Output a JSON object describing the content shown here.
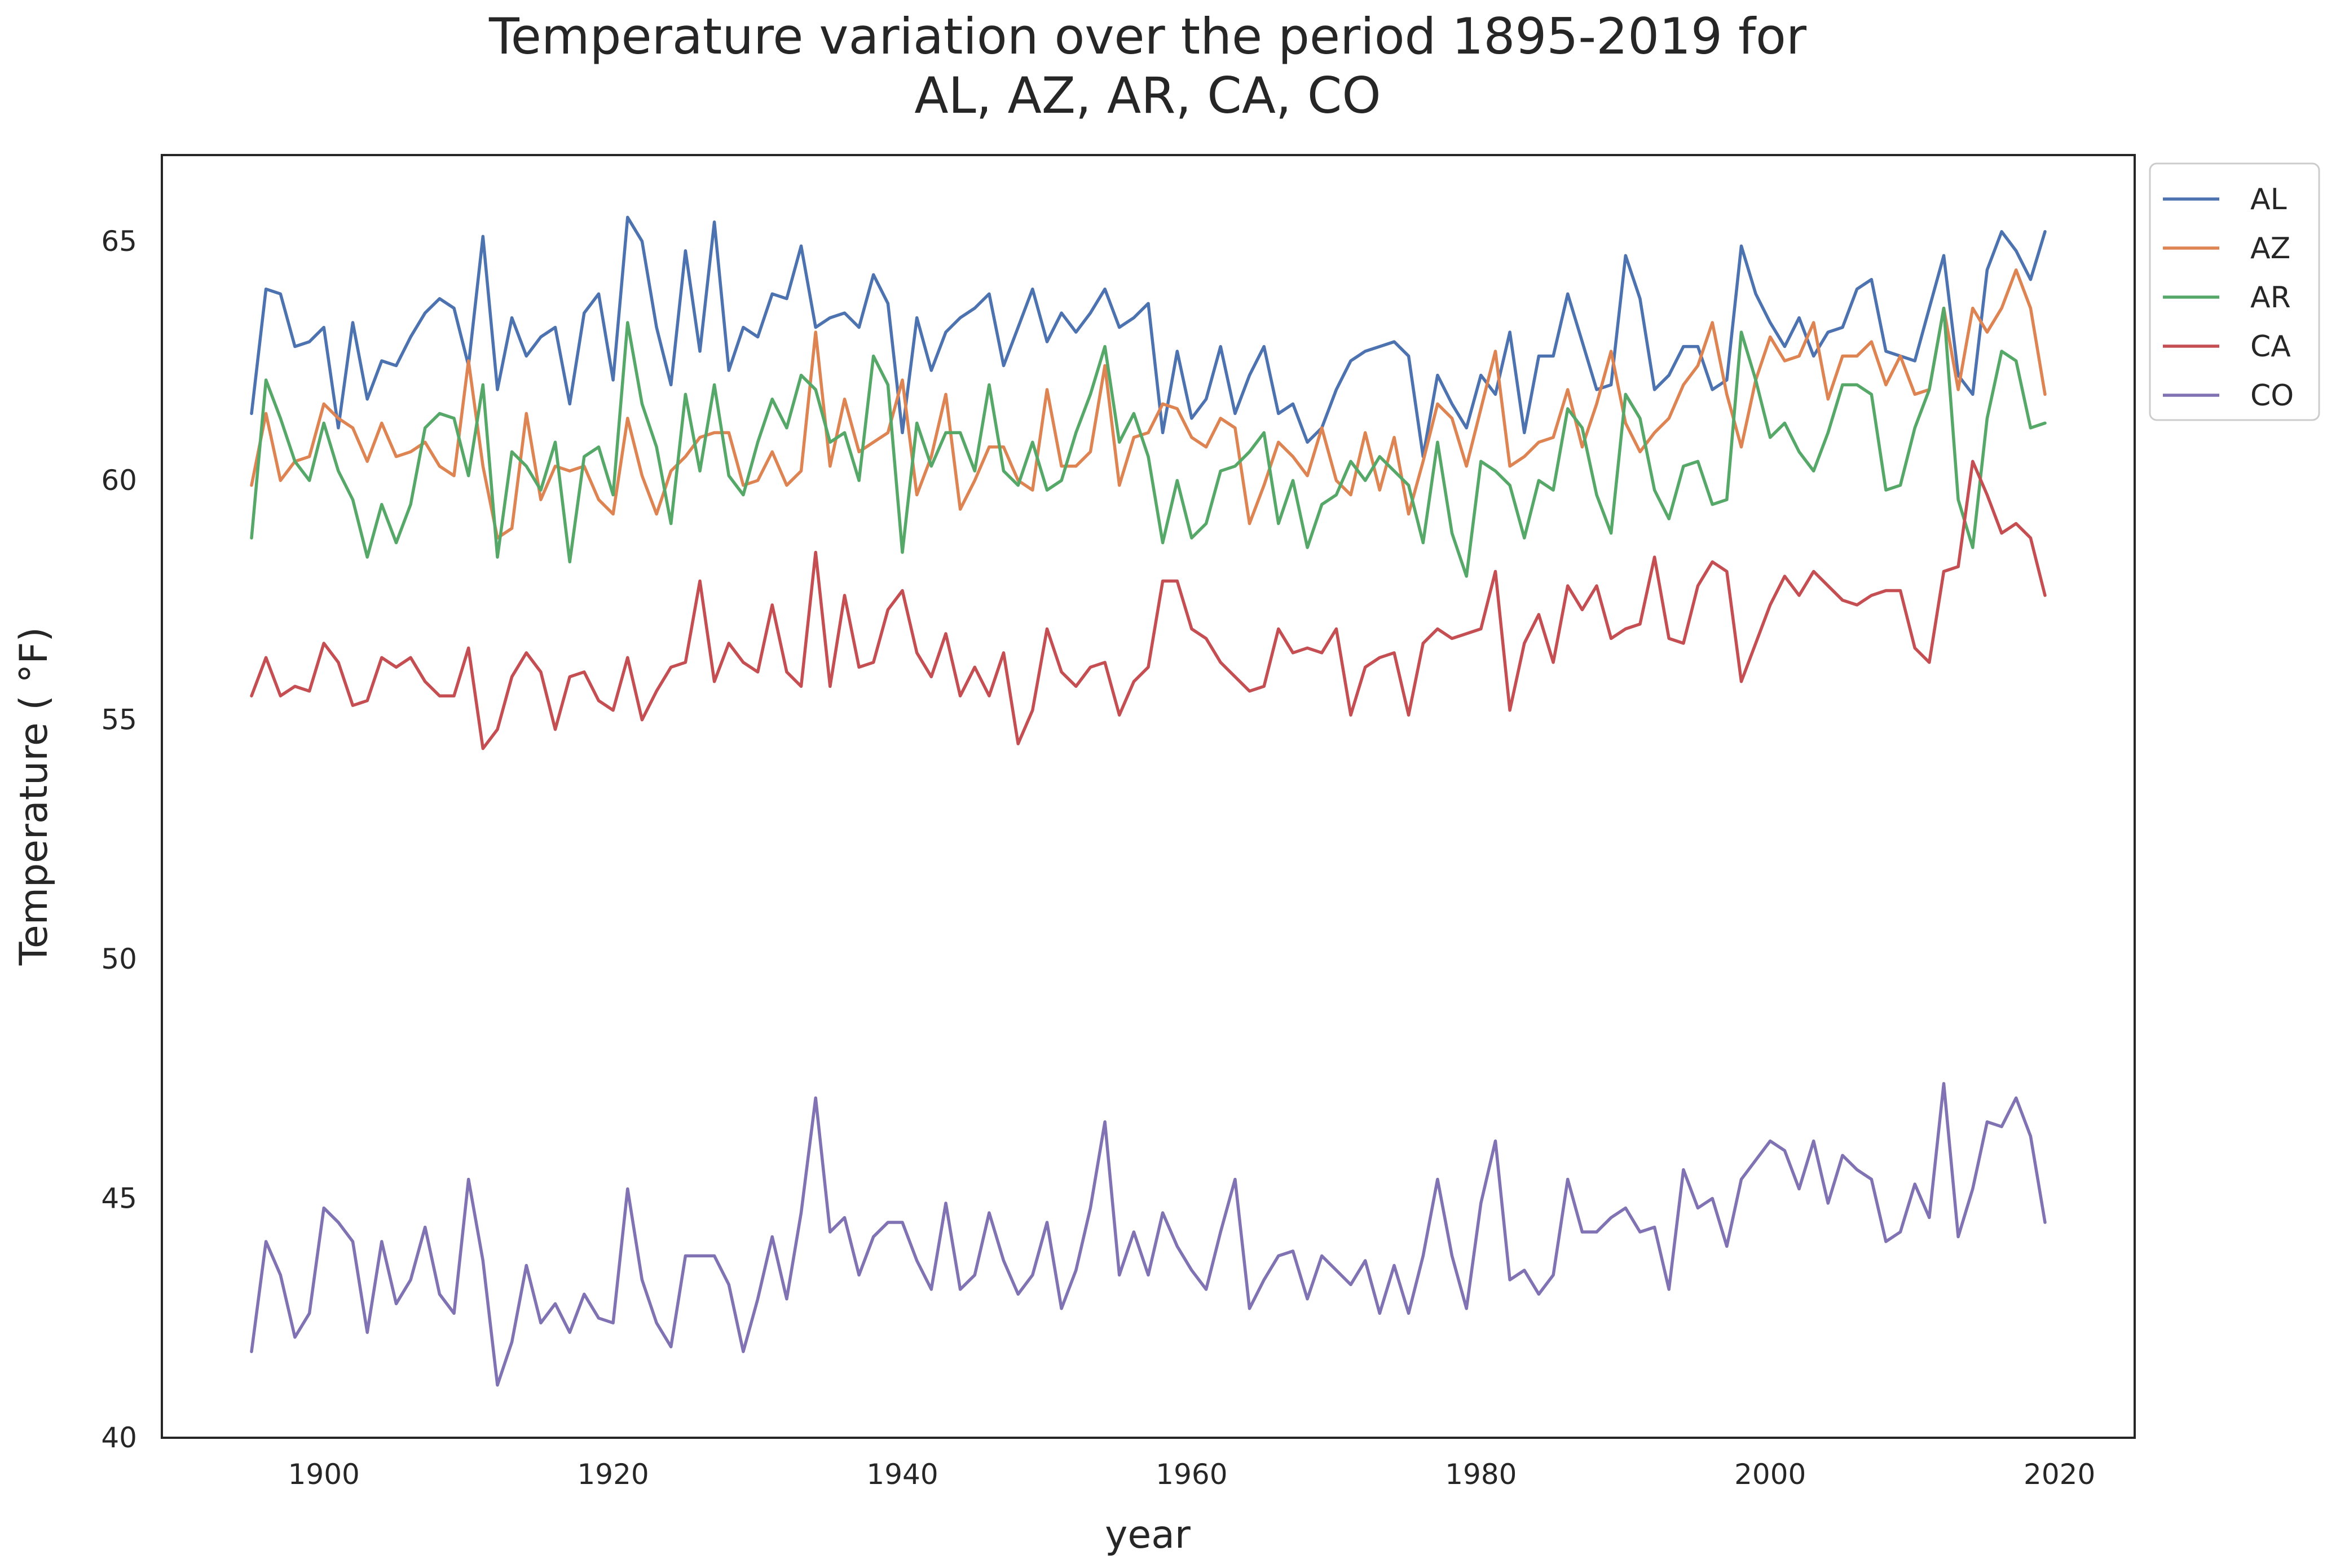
{
  "chart_data": {
    "type": "line",
    "title_lines": [
      "Temperature variation over the period 1895-2019 for",
      "AL, AZ, AR, CA, CO"
    ],
    "xlabel": "year",
    "ylabel": "Temperature ( °F)",
    "xlim": [
      1888.8,
      2025.2
    ],
    "ylim": [
      40,
      66.8
    ],
    "xticks": [
      1900,
      1920,
      1940,
      1960,
      1980,
      2000,
      2020
    ],
    "yticks": [
      40,
      45,
      50,
      55,
      60,
      65
    ],
    "grid": false,
    "legend_position": "upper right, outside plot area",
    "x_start": 1895,
    "series": [
      {
        "name": "AL",
        "color": "#4c72b0",
        "values": [
          61.4,
          64.0,
          63.9,
          62.8,
          62.9,
          63.2,
          61.1,
          63.3,
          61.7,
          62.5,
          62.4,
          63.0,
          63.5,
          63.8,
          63.6,
          62.4,
          65.1,
          61.9,
          63.4,
          62.6,
          63.0,
          63.2,
          61.6,
          63.5,
          63.9,
          62.1,
          65.5,
          65.0,
          63.2,
          62.0,
          64.8,
          62.7,
          65.4,
          62.3,
          63.2,
          63.0,
          63.9,
          63.8,
          64.9,
          63.2,
          63.4,
          63.5,
          63.2,
          64.3,
          63.7,
          61.0,
          63.4,
          62.3,
          63.1,
          63.4,
          63.6,
          63.9,
          62.4,
          63.2,
          64.0,
          62.9,
          63.5,
          63.1,
          63.5,
          64.0,
          63.2,
          63.4,
          63.7,
          61.0,
          62.7,
          61.3,
          61.7,
          62.8,
          61.4,
          62.2,
          62.8,
          61.4,
          61.6,
          60.8,
          61.1,
          61.9,
          62.5,
          62.7,
          62.8,
          62.9,
          62.6,
          60.5,
          62.2,
          61.6,
          61.1,
          62.2,
          61.8,
          63.1,
          61.0,
          62.6,
          62.6,
          63.9,
          62.9,
          61.9,
          62.0,
          64.7,
          63.8,
          61.9,
          62.2,
          62.8,
          62.8,
          61.9,
          62.1,
          64.9,
          63.9,
          63.3,
          62.8,
          63.4,
          62.6,
          63.1,
          63.2,
          64.0,
          64.2,
          62.7,
          62.6,
          62.5,
          63.6,
          64.7,
          62.2,
          61.8,
          64.4,
          65.2,
          64.8,
          64.2,
          65.2
        ]
      },
      {
        "name": "AZ",
        "color": "#dd8452",
        "values": [
          59.9,
          61.4,
          60.0,
          60.4,
          60.5,
          61.6,
          61.3,
          61.1,
          60.4,
          61.2,
          60.5,
          60.6,
          60.8,
          60.3,
          60.1,
          62.5,
          60.3,
          58.8,
          59.0,
          61.4,
          59.6,
          60.3,
          60.2,
          60.3,
          59.6,
          59.3,
          61.3,
          60.1,
          59.3,
          60.2,
          60.5,
          60.9,
          61.0,
          61.0,
          59.9,
          60.0,
          60.6,
          59.9,
          60.2,
          63.1,
          60.3,
          61.7,
          60.6,
          60.8,
          61.0,
          62.1,
          59.7,
          60.5,
          61.8,
          59.4,
          60.0,
          60.7,
          60.7,
          60.0,
          59.8,
          61.9,
          60.3,
          60.3,
          60.6,
          62.4,
          59.9,
          60.9,
          61.0,
          61.6,
          61.5,
          60.9,
          60.7,
          61.3,
          61.1,
          59.1,
          59.9,
          60.8,
          60.5,
          60.1,
          61.1,
          60.0,
          59.7,
          61.0,
          59.8,
          60.9,
          59.3,
          60.4,
          61.6,
          61.3,
          60.3,
          61.5,
          62.7,
          60.3,
          60.5,
          60.8,
          60.9,
          61.9,
          60.7,
          61.6,
          62.7,
          61.2,
          60.6,
          61.0,
          61.3,
          62.0,
          62.4,
          63.3,
          61.8,
          60.7,
          62.1,
          63.0,
          62.5,
          62.6,
          63.3,
          61.7,
          62.6,
          62.6,
          62.9,
          62.0,
          62.6,
          61.8,
          61.9,
          63.6,
          61.9,
          63.6,
          63.1,
          63.6,
          64.4,
          63.6,
          61.8
        ]
      },
      {
        "name": "AR",
        "color": "#55a868",
        "values": [
          58.8,
          62.1,
          61.3,
          60.4,
          60.0,
          61.2,
          60.2,
          59.6,
          58.4,
          59.5,
          58.7,
          59.5,
          61.1,
          61.4,
          61.3,
          60.1,
          62.0,
          58.4,
          60.6,
          60.3,
          59.8,
          60.8,
          58.3,
          60.5,
          60.7,
          59.7,
          63.3,
          61.6,
          60.7,
          59.1,
          61.8,
          60.2,
          62.0,
          60.1,
          59.7,
          60.8,
          61.7,
          61.1,
          62.2,
          61.9,
          60.8,
          61.0,
          60.0,
          62.6,
          62.0,
          58.5,
          61.2,
          60.3,
          61.0,
          61.0,
          60.2,
          62.0,
          60.2,
          59.9,
          60.8,
          59.8,
          60.0,
          61.0,
          61.8,
          62.8,
          60.8,
          61.4,
          60.5,
          58.7,
          60.0,
          58.8,
          59.1,
          60.2,
          60.3,
          60.6,
          61.0,
          59.1,
          60.0,
          58.6,
          59.5,
          59.7,
          60.4,
          60.0,
          60.5,
          60.2,
          59.9,
          58.7,
          60.8,
          58.9,
          58.0,
          60.4,
          60.2,
          59.9,
          58.8,
          60.0,
          59.8,
          61.5,
          61.1,
          59.7,
          58.9,
          61.8,
          61.3,
          59.8,
          59.2,
          60.3,
          60.4,
          59.5,
          59.6,
          63.1,
          62.1,
          60.9,
          61.2,
          60.6,
          60.2,
          61.0,
          62.0,
          62.0,
          61.8,
          59.8,
          59.9,
          61.1,
          61.9,
          63.6,
          59.6,
          58.6,
          61.3,
          62.7,
          62.5,
          61.1,
          61.2
        ]
      },
      {
        "name": "CA",
        "color": "#c44e52",
        "values": [
          55.5,
          56.3,
          55.5,
          55.7,
          55.6,
          56.6,
          56.2,
          55.3,
          55.4,
          56.3,
          56.1,
          56.3,
          55.8,
          55.5,
          55.5,
          56.5,
          54.4,
          54.8,
          55.9,
          56.4,
          56.0,
          54.8,
          55.9,
          56.0,
          55.4,
          55.2,
          56.3,
          55.0,
          55.6,
          56.1,
          56.2,
          57.9,
          55.8,
          56.6,
          56.2,
          56.0,
          57.4,
          56.0,
          55.7,
          58.5,
          55.7,
          57.6,
          56.1,
          56.2,
          57.3,
          57.7,
          56.4,
          55.9,
          56.8,
          55.5,
          56.1,
          55.5,
          56.4,
          54.5,
          55.2,
          56.9,
          56.0,
          55.7,
          56.1,
          56.2,
          55.1,
          55.8,
          56.1,
          57.9,
          57.9,
          56.9,
          56.7,
          56.2,
          55.9,
          55.6,
          55.7,
          56.9,
          56.4,
          56.5,
          56.4,
          56.9,
          55.1,
          56.1,
          56.3,
          56.4,
          55.1,
          56.6,
          56.9,
          56.7,
          56.8,
          56.9,
          58.1,
          55.2,
          56.6,
          57.2,
          56.2,
          57.8,
          57.3,
          57.8,
          56.7,
          56.9,
          57.0,
          58.4,
          56.7,
          56.6,
          57.8,
          58.3,
          58.1,
          55.8,
          56.6,
          57.4,
          58.0,
          57.6,
          58.1,
          57.8,
          57.5,
          57.4,
          57.6,
          57.7,
          57.7,
          56.5,
          56.2,
          58.1,
          58.2,
          60.4,
          59.7,
          58.9,
          59.1,
          58.8,
          57.6
        ]
      },
      {
        "name": "CO",
        "color": "#8172b3",
        "values": [
          41.8,
          44.1,
          43.4,
          42.1,
          42.6,
          44.8,
          44.5,
          44.1,
          42.2,
          44.1,
          42.8,
          43.3,
          44.4,
          43.0,
          42.6,
          45.4,
          43.7,
          41.1,
          42.0,
          43.6,
          42.4,
          42.8,
          42.2,
          43.0,
          42.5,
          42.4,
          45.2,
          43.3,
          42.4,
          41.9,
          43.8,
          43.8,
          43.8,
          43.2,
          41.8,
          42.9,
          44.2,
          42.9,
          44.7,
          47.1,
          44.3,
          44.6,
          43.4,
          44.2,
          44.5,
          44.5,
          43.7,
          43.1,
          44.9,
          43.1,
          43.4,
          44.7,
          43.7,
          43.0,
          43.4,
          44.5,
          42.7,
          43.5,
          44.8,
          46.6,
          43.4,
          44.3,
          43.4,
          44.7,
          44.0,
          43.5,
          43.1,
          44.3,
          45.4,
          42.7,
          43.3,
          43.8,
          43.9,
          42.9,
          43.8,
          43.5,
          43.2,
          43.7,
          42.6,
          43.6,
          42.6,
          43.8,
          45.4,
          43.8,
          42.7,
          44.9,
          46.2,
          43.3,
          43.5,
          43.0,
          43.4,
          45.4,
          44.3,
          44.3,
          44.6,
          44.8,
          44.3,
          44.4,
          43.1,
          45.6,
          44.8,
          45.0,
          44.0,
          45.4,
          45.8,
          46.2,
          46.0,
          45.2,
          46.2,
          44.9,
          45.9,
          45.6,
          45.4,
          44.1,
          44.3,
          45.3,
          44.6,
          47.4,
          44.2,
          45.2,
          46.6,
          46.5,
          47.1,
          46.3,
          44.5
        ]
      }
    ]
  }
}
